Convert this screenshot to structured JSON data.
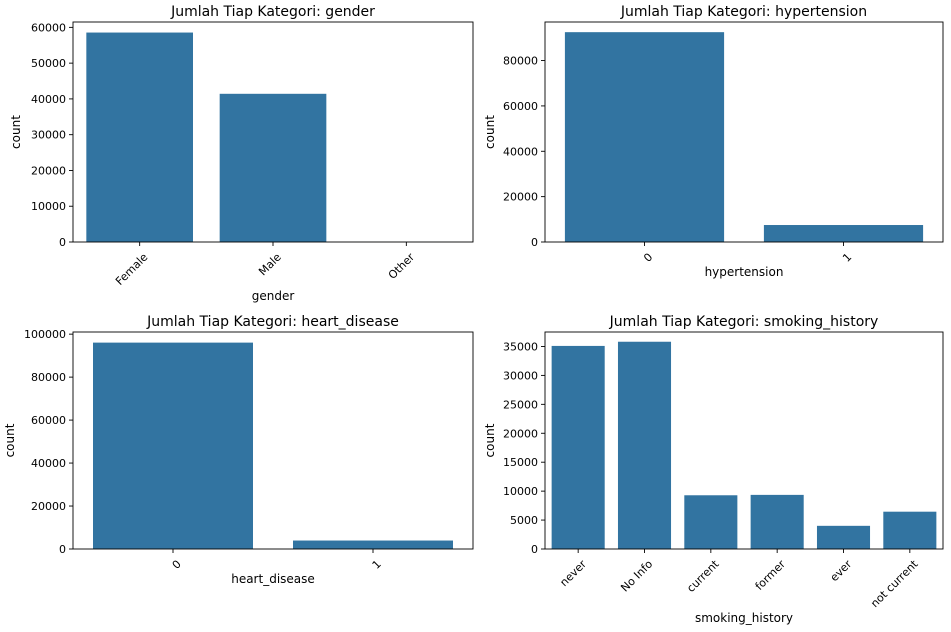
{
  "theme": {
    "bar_color": "#3274a1",
    "background": "#ffffff",
    "axis_color": "#000000"
  },
  "chart_data": [
    {
      "type": "bar",
      "title": "Jumlah Tiap Kategori: gender",
      "xlabel": "gender",
      "ylabel": "count",
      "categories": [
        "Female",
        "Male",
        "Other"
      ],
      "values": [
        58552,
        41430,
        18
      ],
      "ylim": [
        0,
        61500
      ],
      "yticks": [
        0,
        10000,
        20000,
        30000,
        40000,
        50000,
        60000
      ],
      "tick_rotation": 45,
      "grid": false
    },
    {
      "type": "bar",
      "title": "Jumlah Tiap Kategori: hypertension",
      "xlabel": "hypertension",
      "ylabel": "count",
      "categories": [
        "0",
        "1"
      ],
      "values": [
        92515,
        7485
      ],
      "ylim": [
        0,
        97000
      ],
      "yticks": [
        0,
        20000,
        40000,
        60000,
        80000
      ],
      "tick_rotation": 45,
      "grid": false
    },
    {
      "type": "bar",
      "title": "Jumlah Tiap Kategori: heart_disease",
      "xlabel": "heart_disease",
      "ylabel": "count",
      "categories": [
        "0",
        "1"
      ],
      "values": [
        96058,
        3942
      ],
      "ylim": [
        0,
        101000
      ],
      "yticks": [
        0,
        20000,
        40000,
        60000,
        80000,
        100000
      ],
      "tick_rotation": 45,
      "grid": false
    },
    {
      "type": "bar",
      "title": "Jumlah Tiap Kategori: smoking_history",
      "xlabel": "smoking_history",
      "ylabel": "count",
      "categories": [
        "never",
        "No Info",
        "current",
        "former",
        "ever",
        "not current"
      ],
      "values": [
        35095,
        35816,
        9286,
        9352,
        4004,
        6447
      ],
      "ylim": [
        0,
        37500
      ],
      "yticks": [
        0,
        5000,
        10000,
        15000,
        20000,
        25000,
        30000,
        35000
      ],
      "tick_rotation": 45,
      "grid": false
    }
  ]
}
